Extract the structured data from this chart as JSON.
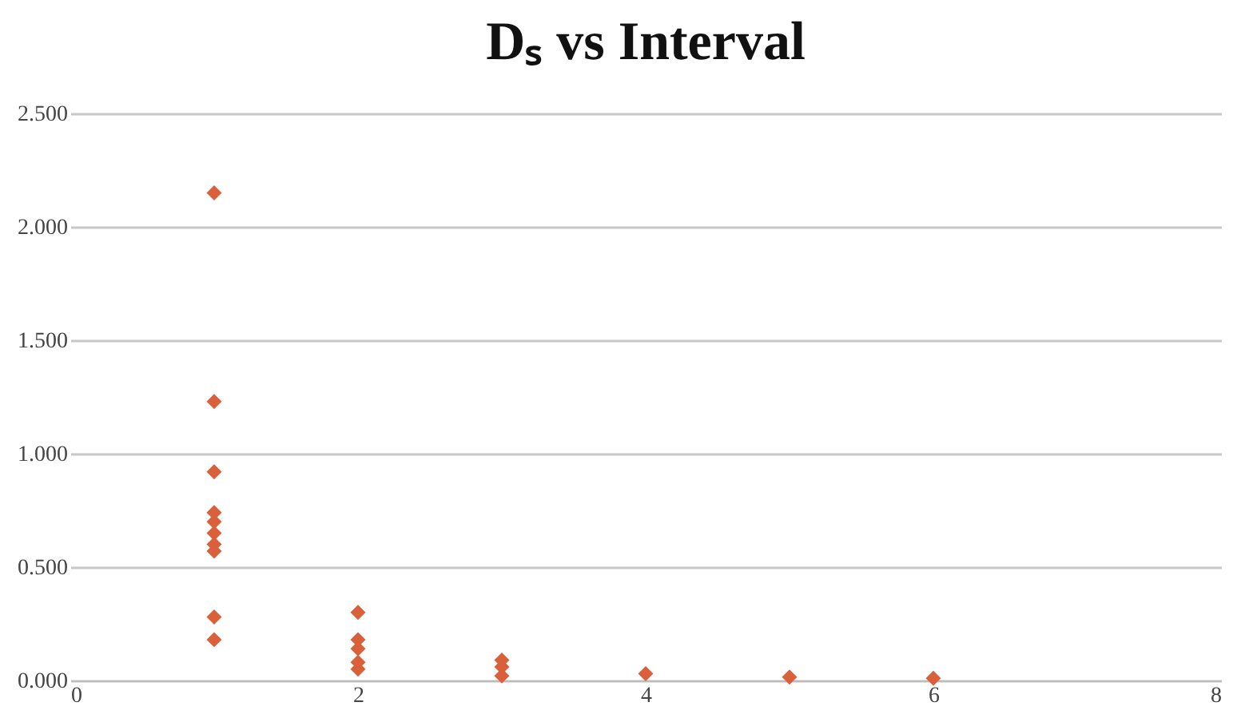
{
  "chart_data": {
    "type": "scatter",
    "title": "Dₛ vs Interval",
    "series": [
      {
        "color": "#d9603b",
        "x": [
          1,
          1,
          1,
          1,
          1,
          1,
          1,
          1,
          1,
          1,
          2,
          2,
          2,
          2,
          2,
          3,
          3,
          3,
          4,
          5,
          6
        ],
        "values": [
          2.15,
          1.23,
          0.92,
          0.74,
          0.7,
          0.65,
          0.6,
          0.57,
          0.28,
          0.18,
          0.3,
          0.18,
          0.14,
          0.08,
          0.05,
          0.09,
          0.06,
          0.02,
          0.03,
          0.015,
          0.01
        ]
      }
    ],
    "xlim": [
      0,
      8
    ],
    "xticks": [
      0,
      2,
      4,
      6,
      8
    ],
    "ylim": [
      0,
      2.5
    ],
    "yticks": [
      {
        "value": 0,
        "label": "0.000"
      },
      {
        "value": 0.5,
        "label": "0.500"
      },
      {
        "value": 1,
        "label": "1.000"
      },
      {
        "value": 1.5,
        "label": "1.500"
      },
      {
        "value": 2,
        "label": "2.000"
      },
      {
        "value": 2.5,
        "label": "2.500"
      }
    ],
    "grid": "y",
    "marker": "diamond"
  }
}
